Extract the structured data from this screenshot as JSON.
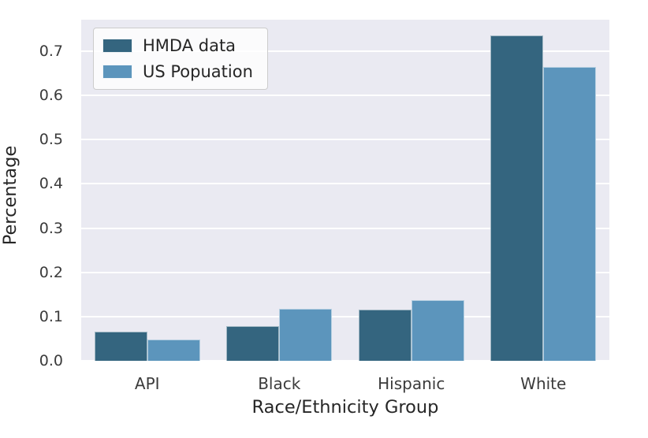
{
  "chart_data": {
    "type": "bar",
    "title": "",
    "xlabel": "Race/Ethnicity Group",
    "ylabel": "Percentage",
    "categories": [
      "API",
      "Black",
      "Hispanic",
      "White"
    ],
    "series": [
      {
        "name": "HMDA data",
        "color": "#34657F",
        "values": [
          0.066,
          0.078,
          0.116,
          0.736
        ]
      },
      {
        "name": "US Popuation",
        "color": "#5C95BC",
        "values": [
          0.048,
          0.117,
          0.137,
          0.664
        ]
      }
    ],
    "ylim": [
      0,
      0.771
    ],
    "yticks": [
      0.0,
      0.1,
      0.2,
      0.3,
      0.4,
      0.5,
      0.6,
      0.7
    ],
    "ytick_labels": [
      "0.0",
      "0.1",
      "0.2",
      "0.3",
      "0.4",
      "0.5",
      "0.6",
      "0.7"
    ],
    "grid": true,
    "legend_position": "upper left",
    "colors": {
      "plot_background": "#EAEAF2",
      "gridline": "#FFFFFF",
      "text": "#262626",
      "tick_text": "#3b3b3b"
    }
  }
}
